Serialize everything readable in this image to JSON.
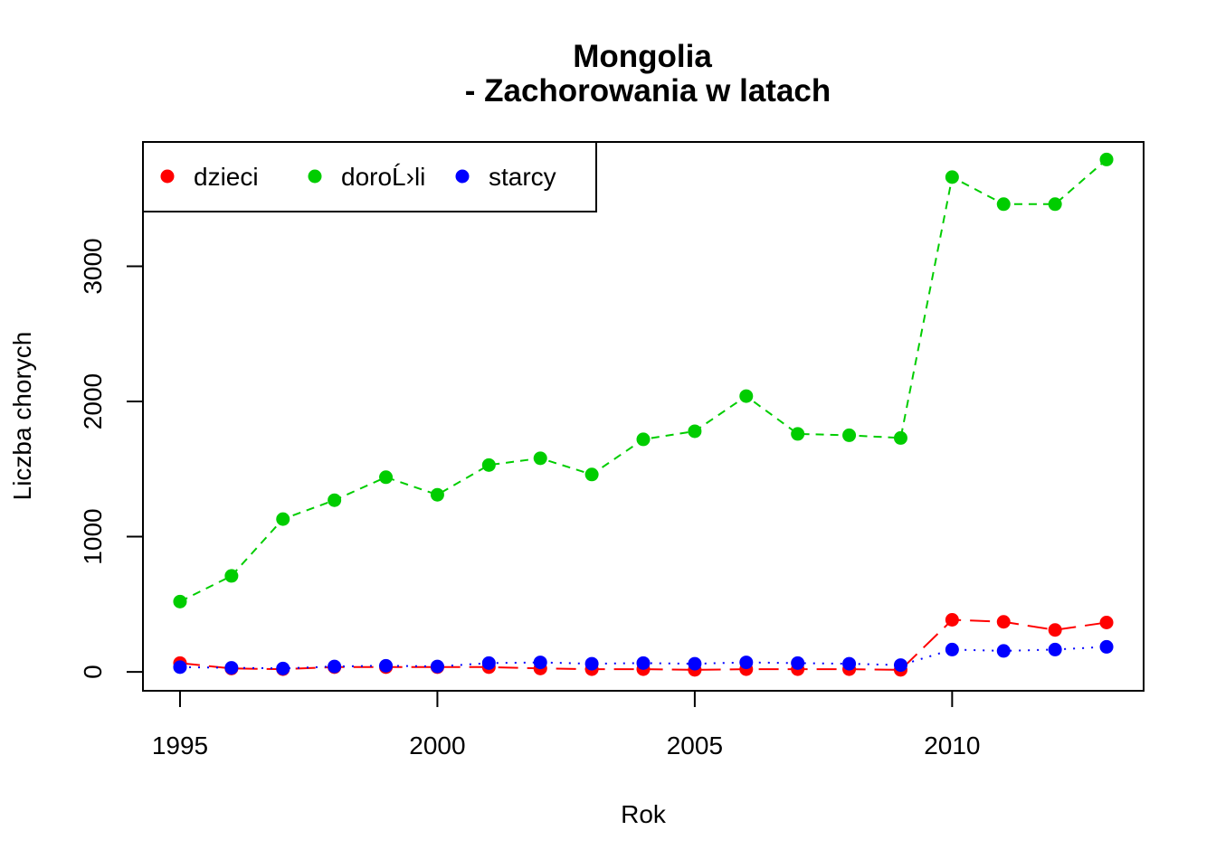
{
  "chart_data": {
    "type": "line",
    "title_line1": "Mongolia",
    "title_line2": "- Zachorowania w latach",
    "xlabel": "Rok",
    "ylabel": "Liczba chorych",
    "x": [
      1995,
      1996,
      1997,
      1998,
      1999,
      2000,
      2001,
      2002,
      2003,
      2004,
      2005,
      2006,
      2007,
      2008,
      2009,
      2010,
      2011,
      2012,
      2013
    ],
    "xticks": [
      "1995",
      "2000",
      "2005",
      "2010"
    ],
    "xtick_values": [
      1995,
      2000,
      2005,
      2010
    ],
    "yticks": [
      "0",
      "1000",
      "2000",
      "3000"
    ],
    "ytick_values": [
      0,
      1000,
      2000,
      3000
    ],
    "xlim": [
      1994.28,
      2013.72
    ],
    "ylim": [
      -140,
      3920
    ],
    "grid": false,
    "legend_position": "top-left",
    "series": [
      {
        "name": "dzieci",
        "color": "#ff0000",
        "line_style": "longdash",
        "values": [
          65,
          25,
          20,
          35,
          35,
          35,
          35,
          25,
          20,
          20,
          15,
          20,
          20,
          20,
          15,
          385,
          370,
          310,
          365
        ]
      },
      {
        "name": "doroĹ›li",
        "color": "#00cd00",
        "line_style": "dashed",
        "values": [
          520,
          710,
          1130,
          1270,
          1440,
          1310,
          1530,
          1580,
          1460,
          1720,
          1780,
          2040,
          1760,
          1750,
          1730,
          3660,
          3460,
          3460,
          3790
        ]
      },
      {
        "name": "starcy",
        "color": "#0000ff",
        "line_style": "dotted",
        "values": [
          35,
          30,
          25,
          40,
          45,
          40,
          65,
          70,
          60,
          65,
          60,
          70,
          65,
          60,
          50,
          165,
          155,
          165,
          185
        ]
      }
    ]
  }
}
